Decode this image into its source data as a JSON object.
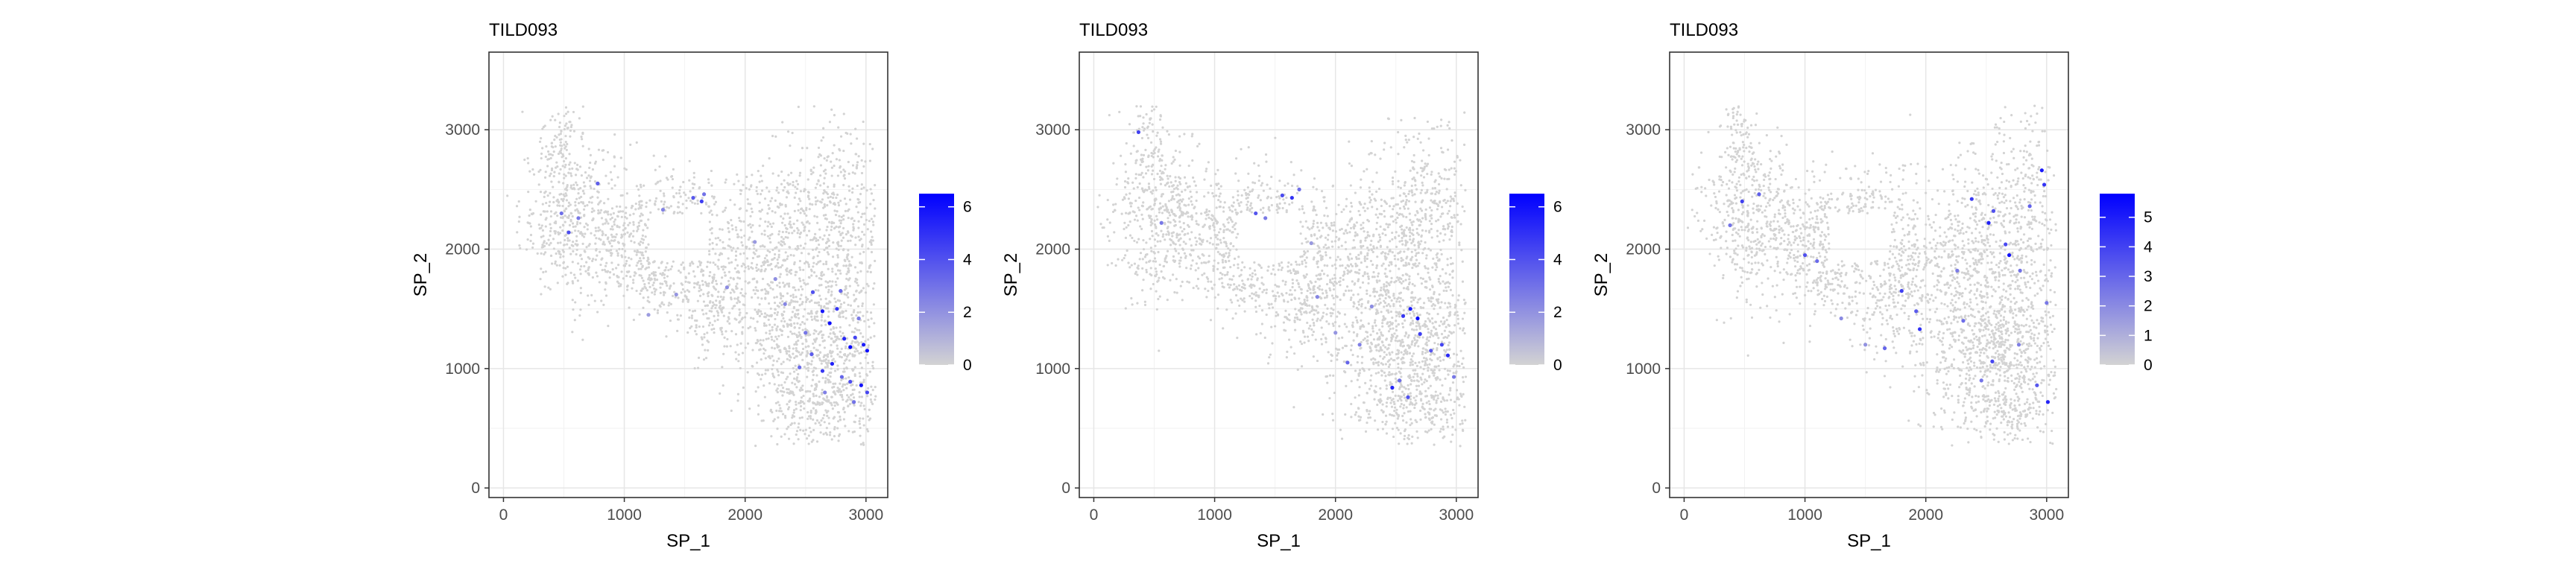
{
  "chart_data": [
    {
      "type": "scatter",
      "title": "TILD093",
      "xlabel": "SP_1",
      "ylabel": "SP_2",
      "xlim": [
        -120,
        3180
      ],
      "ylim": [
        -80,
        3650
      ],
      "xticks": [
        0,
        1000,
        2000,
        3000
      ],
      "yticks": [
        0,
        1000,
        2000,
        3000
      ],
      "x_tick_labels": [
        "0",
        "1000",
        "2000",
        "3000"
      ],
      "y_tick_labels": [
        "0",
        "1000",
        "2000",
        "3000"
      ],
      "grid": true,
      "legend": {
        "placement": "right",
        "min": 0,
        "max": 6.5,
        "ticks": [
          0,
          2,
          4,
          6
        ],
        "tick_labels": [
          "0",
          "2",
          "4",
          "6"
        ],
        "low_color": "#d3d3d3",
        "high_color": "#0000ff"
      },
      "points": [
        [
          540,
          2140,
          4.2
        ],
        [
          480,
          2300,
          3.1
        ],
        [
          620,
          2260,
          2.8
        ],
        [
          780,
          2550,
          3.6
        ],
        [
          1320,
          2330,
          2.5
        ],
        [
          1570,
          2430,
          3.8
        ],
        [
          1640,
          2400,
          4.6
        ],
        [
          1660,
          2460,
          3.0
        ],
        [
          1850,
          1680,
          2.2
        ],
        [
          2080,
          2060,
          1.8
        ],
        [
          2560,
          1640,
          4.0
        ],
        [
          2640,
          1480,
          5.8
        ],
        [
          2700,
          1380,
          6.1
        ],
        [
          2760,
          1500,
          4.9
        ],
        [
          2820,
          1250,
          5.3
        ],
        [
          2870,
          1180,
          6.4
        ],
        [
          2910,
          1260,
          4.4
        ],
        [
          2980,
          1200,
          5.6
        ],
        [
          3010,
          1150,
          6.0
        ],
        [
          2550,
          1120,
          3.7
        ],
        [
          2640,
          980,
          4.8
        ],
        [
          2720,
          1040,
          5.5
        ],
        [
          2800,
          930,
          3.4
        ],
        [
          2870,
          890,
          4.1
        ],
        [
          2960,
          860,
          5.9
        ],
        [
          3010,
          800,
          4.3
        ],
        [
          2500,
          1300,
          2.9
        ],
        [
          2450,
          1010,
          3.2
        ],
        [
          2660,
          800,
          2.6
        ],
        [
          2900,
          720,
          3.0
        ],
        [
          2330,
          1540,
          2.4
        ],
        [
          2250,
          1750,
          2.1
        ],
        [
          1430,
          1620,
          1.9
        ],
        [
          1200,
          1450,
          1.7
        ],
        [
          2790,
          1650,
          3.3
        ],
        [
          2940,
          1420,
          2.7
        ]
      ]
    },
    {
      "type": "scatter",
      "title": "TILD093",
      "xlabel": "SP_1",
      "ylabel": "SP_2",
      "xlim": [
        -120,
        3180
      ],
      "ylim": [
        -80,
        3650
      ],
      "xticks": [
        0,
        1000,
        2000,
        3000
      ],
      "yticks": [
        0,
        1000,
        2000,
        3000
      ],
      "x_tick_labels": [
        "0",
        "1000",
        "2000",
        "3000"
      ],
      "y_tick_labels": [
        "0",
        "1000",
        "2000",
        "3000"
      ],
      "grid": true,
      "legend": {
        "placement": "right",
        "min": 0,
        "max": 6.5,
        "ticks": [
          0,
          2,
          4,
          6
        ],
        "tick_labels": [
          "0",
          "2",
          "4",
          "6"
        ],
        "low_color": "#d3d3d3",
        "high_color": "#0000ff"
      },
      "points": [
        [
          370,
          2980,
          4.5
        ],
        [
          560,
          2220,
          2.8
        ],
        [
          1340,
          2300,
          3.9
        ],
        [
          1420,
          2260,
          2.7
        ],
        [
          1560,
          2450,
          4.2
        ],
        [
          1640,
          2430,
          5.0
        ],
        [
          1700,
          2500,
          3.1
        ],
        [
          1850,
          1600,
          2.4
        ],
        [
          2000,
          1300,
          1.9
        ],
        [
          2100,
          1050,
          3.4
        ],
        [
          2560,
          1440,
          4.8
        ],
        [
          2620,
          1500,
          5.7
        ],
        [
          2680,
          1420,
          6.2
        ],
        [
          2700,
          1290,
          4.6
        ],
        [
          2790,
          1150,
          3.8
        ],
        [
          2880,
          1200,
          4.4
        ],
        [
          2930,
          1110,
          5.2
        ],
        [
          2470,
          840,
          5.4
        ],
        [
          2600,
          760,
          4.0
        ],
        [
          2530,
          900,
          3.1
        ],
        [
          2980,
          930,
          2.8
        ],
        [
          2300,
          1520,
          2.2
        ],
        [
          2200,
          1200,
          2.6
        ],
        [
          1800,
          2050,
          1.8
        ]
      ]
    },
    {
      "type": "scatter",
      "title": "TILD093",
      "xlabel": "SP_1",
      "ylabel": "SP_2",
      "xlim": [
        -120,
        3180
      ],
      "ylim": [
        -80,
        3650
      ],
      "xticks": [
        0,
        1000,
        2000,
        3000
      ],
      "yticks": [
        0,
        1000,
        2000,
        3000
      ],
      "x_tick_labels": [
        "0",
        "1000",
        "2000",
        "3000"
      ],
      "y_tick_labels": [
        "0",
        "1000",
        "2000",
        "3000"
      ],
      "grid": true,
      "legend": {
        "placement": "right",
        "min": 0,
        "max": 5.8,
        "ticks": [
          0,
          1,
          2,
          3,
          4,
          5
        ],
        "tick_labels": [
          "0",
          "1",
          "2",
          "3",
          "4",
          "5"
        ],
        "low_color": "#d3d3d3",
        "high_color": "#0000ff"
      },
      "points": [
        [
          480,
          2400,
          4.0
        ],
        [
          620,
          2460,
          3.2
        ],
        [
          380,
          2200,
          2.6
        ],
        [
          1000,
          1950,
          3.6
        ],
        [
          1100,
          1900,
          2.9
        ],
        [
          1800,
          1650,
          4.1
        ],
        [
          1920,
          1480,
          3.3
        ],
        [
          1950,
          1330,
          4.5
        ],
        [
          1660,
          1170,
          3.0
        ],
        [
          2260,
          1820,
          2.4
        ],
        [
          2310,
          1400,
          2.8
        ],
        [
          2380,
          2420,
          4.2
        ],
        [
          2520,
          2220,
          4.9
        ],
        [
          2560,
          2320,
          3.6
        ],
        [
          2660,
          2040,
          3.8
        ],
        [
          2690,
          1950,
          5.4
        ],
        [
          2780,
          1820,
          2.7
        ],
        [
          2860,
          2360,
          3.1
        ],
        [
          2960,
          2660,
          5.1
        ],
        [
          2980,
          2540,
          4.4
        ],
        [
          3000,
          1550,
          2.5
        ],
        [
          3010,
          720,
          4.8
        ],
        [
          2920,
          860,
          3.4
        ],
        [
          2460,
          900,
          2.6
        ],
        [
          2550,
          1060,
          3.9
        ],
        [
          2770,
          1200,
          2.3
        ],
        [
          1500,
          1200,
          1.8
        ],
        [
          1300,
          1420,
          2.0
        ]
      ]
    }
  ]
}
